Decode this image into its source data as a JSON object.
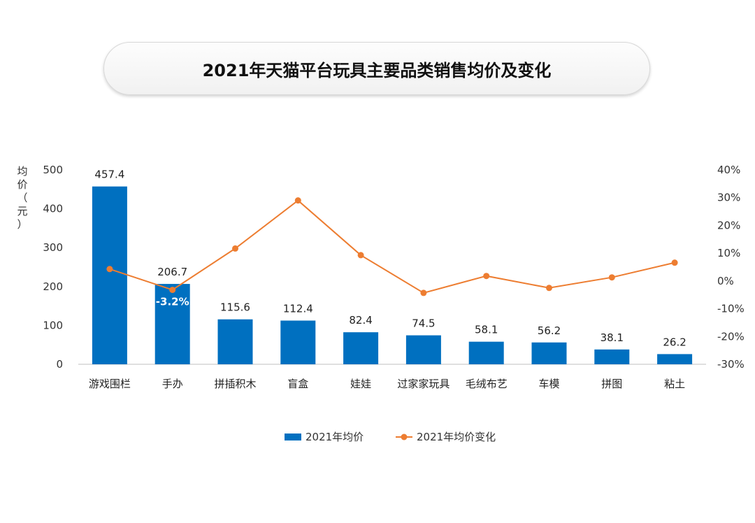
{
  "title": "2021年天猫平台玩具主要品类销售均价及变化",
  "chart_data": {
    "type": "bar",
    "title": "2021年天猫平台玩具主要品类销售均价及变化",
    "categories": [
      "游戏围栏",
      "手办",
      "拼插积木",
      "盲盒",
      "娃娃",
      "过家家玩具",
      "毛绒布艺",
      "车模",
      "拼图",
      "粘土"
    ],
    "series": [
      {
        "name": "2021年均价",
        "type": "bar",
        "axis": "left",
        "color": "#0070C0",
        "values": [
          457.4,
          206.7,
          115.6,
          112.4,
          82.4,
          74.5,
          58.1,
          56.2,
          38.1,
          26.2
        ],
        "labels": [
          "457.4",
          "206.7",
          "115.6",
          "112.4",
          "82.4",
          "74.5",
          "58.1",
          "56.2",
          "38.1",
          "26.2"
        ]
      },
      {
        "name": "2021年均价变化",
        "type": "line",
        "axis": "right",
        "color": "#ED7D31",
        "values": [
          4.3,
          -3.2,
          11.7,
          29.0,
          9.3,
          -4.3,
          1.8,
          -2.5,
          1.3,
          6.6
        ],
        "highlight_label": "-3.2%"
      }
    ],
    "ylabel": "均价（元）",
    "ylabel_chars": [
      "均",
      "价",
      "（",
      "元",
      "）"
    ],
    "ylim": [
      0,
      500
    ],
    "y_ticks": [
      "0",
      "100",
      "200",
      "300",
      "400",
      "500"
    ],
    "y2lim": [
      -30,
      40
    ],
    "y2_ticks": [
      "-30%",
      "-20%",
      "-10%",
      "0%",
      "10%",
      "20%",
      "30%",
      "40%"
    ],
    "grid": false,
    "legend_position": "bottom"
  }
}
